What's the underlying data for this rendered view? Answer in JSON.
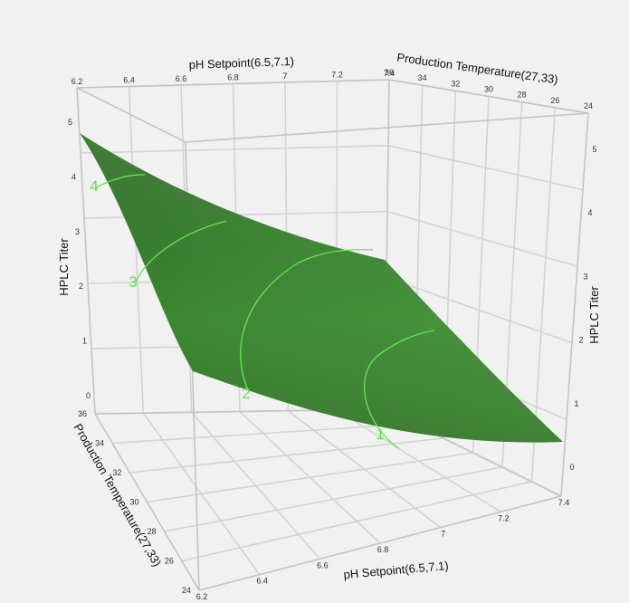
{
  "chart_data": {
    "type": "surface",
    "z_label": "HPLC Titer",
    "x_axis": {
      "label": "pH Setpoint(6.5,7.1)",
      "range": [
        6.2,
        7.4
      ],
      "ticks_front": [
        "6.2",
        "6.4",
        "6.6",
        "6.8",
        "7",
        "7.2",
        "7.4"
      ],
      "ticks_top": [
        "6.2",
        "6.4",
        "6.6",
        "6.8",
        "7",
        "7.2",
        "7.4"
      ]
    },
    "y_axis": {
      "label": "Production Temperature(27,33)",
      "range": [
        24,
        36
      ],
      "ticks_left": [
        "36",
        "34",
        "32",
        "30",
        "28",
        "26",
        "24"
      ],
      "ticks_top": [
        "36",
        "34",
        "32",
        "30",
        "28",
        "26",
        "24"
      ]
    },
    "z_axis": {
      "label": "HPLC Titer",
      "range": [
        0,
        5
      ],
      "ticks": [
        "0",
        "1",
        "2",
        "3",
        "4",
        "5"
      ]
    },
    "contours": [
      {
        "level": 1,
        "label": "1"
      },
      {
        "level": 2,
        "label": "2"
      },
      {
        "level": 3,
        "label": "3"
      },
      {
        "level": 4,
        "label": "4"
      }
    ],
    "surface_color": "#3f8a35",
    "contour_color": "#66e455",
    "grid": true
  }
}
